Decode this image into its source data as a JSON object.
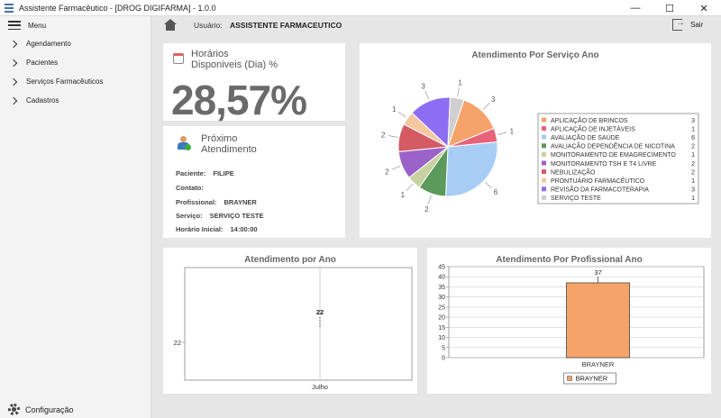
{
  "window": {
    "title": "Assistente Farmacêutico - [DROG DIGIFARMA] - 1.0.0",
    "minimize": "—",
    "maximize": "☐",
    "close": "✕"
  },
  "sidebar": {
    "menu_label": "Menu",
    "items": [
      {
        "label": "Agendamento"
      },
      {
        "label": "Pacientes"
      },
      {
        "label": "Serviços Farmacêuticos"
      },
      {
        "label": "Cadastros"
      }
    ],
    "config_label": "Configuração"
  },
  "topbar": {
    "user_label": "Usuário:",
    "user_value": "ASSISTENTE FARMACEUTICO",
    "exit_label": "Sair"
  },
  "horarios": {
    "title_line1": "Horários",
    "title_line2": "Disponiveis (Dia) %",
    "value": "28,57%"
  },
  "proximo": {
    "title_line1": "Próximo",
    "title_line2": "Atendimento",
    "rows": [
      {
        "label": "Paciente:",
        "value": "FILIPE"
      },
      {
        "label": "Contato:",
        "value": ""
      },
      {
        "label": "Profissional:",
        "value": "BRAYNER"
      },
      {
        "label": "Serviço:",
        "value": "SERVIÇO TESTE"
      },
      {
        "label": "Horário Inicial:",
        "value": "14:00:00"
      }
    ]
  },
  "chart_data": [
    {
      "type": "pie",
      "title": "Atendimento Por Serviço Ano",
      "legend": "right",
      "slices": [
        {
          "label": "APLICAÇÃO DE BRINCOS",
          "value": 3,
          "color": "#f5a36b"
        },
        {
          "label": "APLICAÇÃO DE INJETÁVEIS",
          "value": 1,
          "color": "#e8637a"
        },
        {
          "label": "AVALIAÇÃO DE SAÚDE",
          "value": 6,
          "color": "#a8cdf5"
        },
        {
          "label": "AVALIAÇÃO DEPENDÊNCIA DE NICOTINA",
          "value": 2,
          "color": "#5b9a5a"
        },
        {
          "label": "MONITORAMENTO DE EMAGRECIMENTO",
          "value": 1,
          "color": "#c8d2a0"
        },
        {
          "label": "MONITORAMENTO TSH E T4 LIVRE",
          "value": 2,
          "color": "#9b63c9"
        },
        {
          "label": "NEBULIZAÇÃO",
          "value": 2,
          "color": "#d45a64"
        },
        {
          "label": "PRONTUÁRIO FARMACÊUTICO",
          "value": 1,
          "color": "#f5c8a0"
        },
        {
          "label": "REVISÃO DA FARMACOTERAPIA",
          "value": 3,
          "color": "#8d6ef2"
        },
        {
          "label": "SERVIÇO TESTE",
          "value": 1,
          "color": "#cfcfcf"
        }
      ]
    },
    {
      "type": "scatter",
      "title": "Atendimento por Ano",
      "categories": [
        "Julho"
      ],
      "values": [
        22
      ],
      "ytick": "22"
    },
    {
      "type": "bar",
      "title": "Atendimento Por Profissional Ano",
      "categories": [
        "BRAYNER"
      ],
      "values": [
        37
      ],
      "ylim": [
        0,
        45
      ],
      "yticks": [
        0,
        5,
        10,
        15,
        20,
        25,
        30,
        35,
        40,
        45
      ],
      "legend": "bottom",
      "legend_label": "BRAYNER",
      "color": "#f5a36b"
    }
  ]
}
